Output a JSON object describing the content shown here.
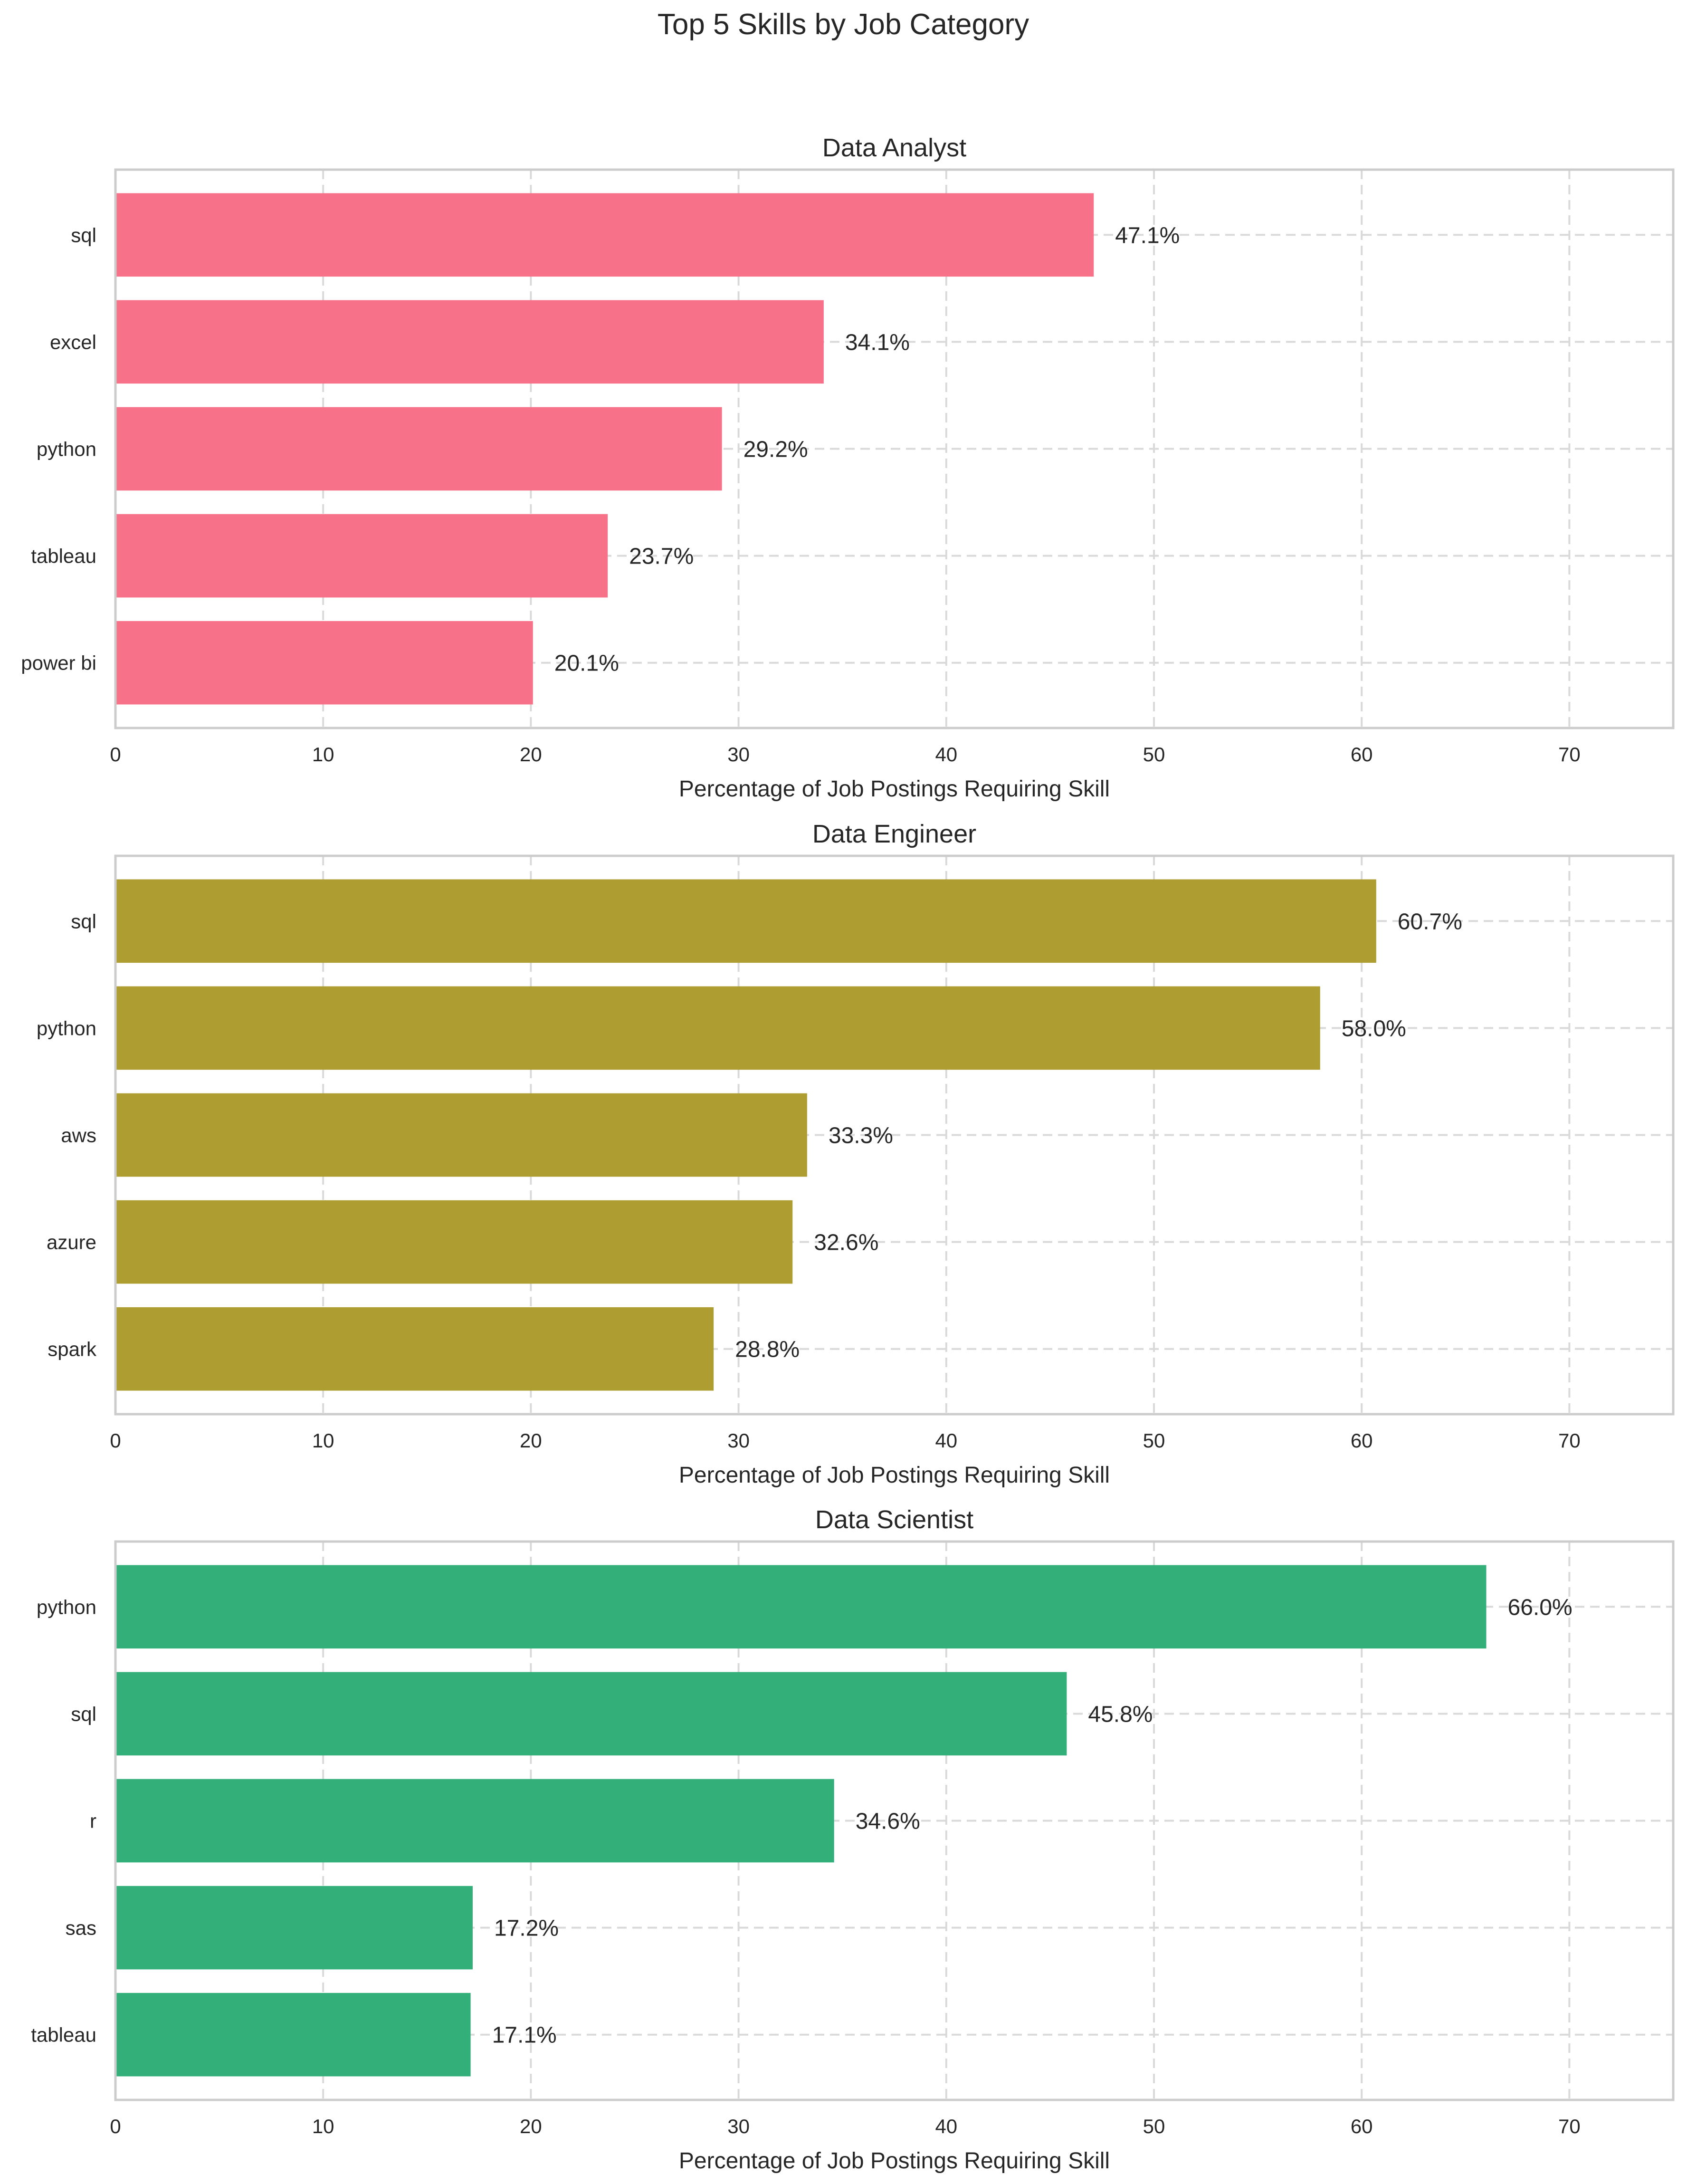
{
  "figure": {
    "title": "Top 5 Skills by Job Category"
  },
  "chart_data": [
    {
      "type": "bar",
      "orientation": "horizontal",
      "title": "Data Analyst",
      "xlabel": "Percentage of Job Postings Requiring Skill",
      "ylabel": "",
      "xlim": [
        0,
        75
      ],
      "xticks": [
        "0",
        "10",
        "20",
        "30",
        "40",
        "50",
        "60",
        "70"
      ],
      "grid": true,
      "color": "#f77189",
      "categories": [
        "sql",
        "excel",
        "python",
        "tableau",
        "power bi"
      ],
      "values": [
        47.1,
        34.1,
        29.2,
        23.7,
        20.1
      ],
      "labels": [
        "47.1%",
        "34.1%",
        "29.2%",
        "23.7%",
        "20.1%"
      ]
    },
    {
      "type": "bar",
      "orientation": "horizontal",
      "title": "Data Engineer",
      "xlabel": "Percentage of Job Postings Requiring Skill",
      "ylabel": "",
      "xlim": [
        0,
        75
      ],
      "xticks": [
        "0",
        "10",
        "20",
        "30",
        "40",
        "50",
        "60",
        "70"
      ],
      "grid": true,
      "color": "#ae9d31",
      "categories": [
        "sql",
        "python",
        "aws",
        "azure",
        "spark"
      ],
      "values": [
        60.7,
        58.0,
        33.3,
        32.6,
        28.8
      ],
      "labels": [
        "60.7%",
        "58.0%",
        "33.3%",
        "32.6%",
        "28.8%"
      ]
    },
    {
      "type": "bar",
      "orientation": "horizontal",
      "title": "Data Scientist",
      "xlabel": "Percentage of Job Postings Requiring Skill",
      "ylabel": "",
      "xlim": [
        0,
        75
      ],
      "xticks": [
        "0",
        "10",
        "20",
        "30",
        "40",
        "50",
        "60",
        "70"
      ],
      "grid": true,
      "color": "#33b07a",
      "categories": [
        "python",
        "sql",
        "r",
        "sas",
        "tableau"
      ],
      "values": [
        66.0,
        45.8,
        34.6,
        17.2,
        17.1
      ],
      "labels": [
        "66.0%",
        "45.8%",
        "34.6%",
        "17.2%",
        "17.1%"
      ]
    }
  ]
}
